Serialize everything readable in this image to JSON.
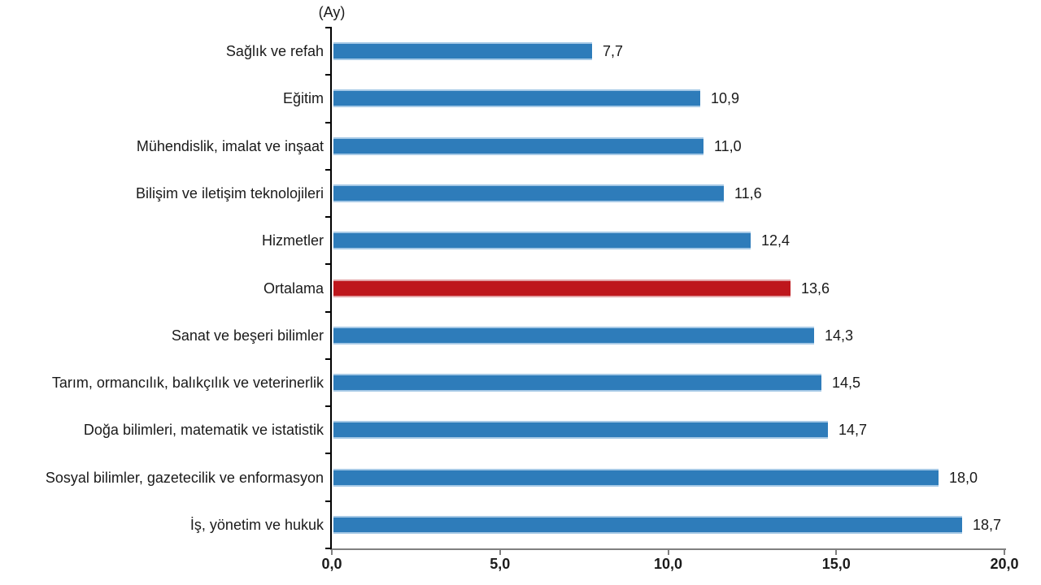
{
  "chart_data": {
    "type": "bar",
    "orientation": "horizontal",
    "unit_label": "(Ay)",
    "categories": [
      "Sağlık ve refah",
      "Eğitim",
      "Mühendislik, imalat ve inşaat",
      "Bilişim ve iletişim teknolojileri",
      "Hizmetler",
      "Ortalama",
      "Sanat ve beşeri bilimler",
      "Tarım, ormancılık, balıkçılık ve veterinerlik",
      "Doğa bilimleri, matematik ve istatistik",
      "Sosyal bilimler, gazetecilik ve enformasyon",
      "İş, yönetim ve hukuk"
    ],
    "values": [
      7.7,
      10.9,
      11.0,
      11.6,
      12.4,
      13.6,
      14.3,
      14.5,
      14.7,
      18.0,
      18.7
    ],
    "value_labels": [
      "7,7",
      "10,9",
      "11,0",
      "11,6",
      "12,4",
      "13,6",
      "14,3",
      "14,5",
      "14,7",
      "18,0",
      "18,7"
    ],
    "highlight_index": 5,
    "highlight_category": "Ortalama",
    "xlim": [
      0,
      20
    ],
    "x_ticks": [
      0,
      5,
      10,
      15,
      20
    ],
    "x_tick_labels": [
      "0,0",
      "5,0",
      "10,0",
      "15,0",
      "20,0"
    ],
    "grid": false,
    "legend": null,
    "colors": {
      "bar": "#2E7CBA",
      "bar_edge": "#A6C9E6",
      "highlight": "#BE171C",
      "highlight_edge": "#E2A3A5",
      "y_axis": "#000000",
      "x_axis": "#808080",
      "text": "#1A1A1A"
    }
  }
}
